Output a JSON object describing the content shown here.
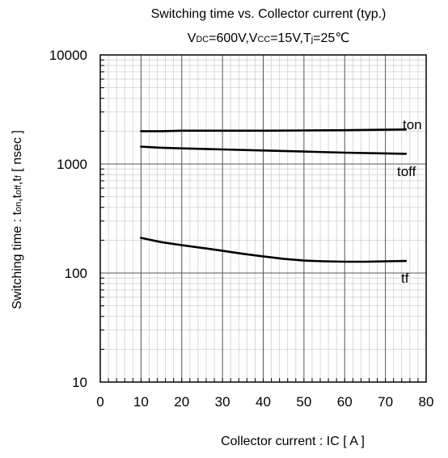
{
  "chart_data": {
    "type": "line",
    "title": "Switching time vs. Collector current (typ.)",
    "subtitle": {
      "parts": [
        {
          "text": "V",
          "sub": false
        },
        {
          "text": "DC",
          "sub": true
        },
        {
          "text": "=600V,V",
          "sub": false
        },
        {
          "text": "CC",
          "sub": true
        },
        {
          "text": "=15V,T",
          "sub": false
        },
        {
          "text": "j",
          "sub": true
        },
        {
          "text": "=25℃",
          "sub": false
        }
      ]
    },
    "xlabel": "Collector current : IC [ A ]",
    "ylabel": {
      "parts": [
        {
          "text": "Switching time : t",
          "sub": false
        },
        {
          "text": "on",
          "sub": true
        },
        {
          "text": ",t",
          "sub": false
        },
        {
          "text": "off",
          "sub": true
        },
        {
          "text": ",t",
          "sub": false
        },
        {
          "text": "f",
          "sub": true
        },
        {
          "text": " [ nsec ]",
          "sub": false
        }
      ]
    },
    "xlim": [
      0,
      80
    ],
    "ylim": [
      10,
      10000
    ],
    "yscale": "log",
    "grid": true,
    "xticks": [
      0,
      10,
      20,
      30,
      40,
      50,
      60,
      70,
      80
    ],
    "xtick_labels": [
      "0",
      "10",
      "20",
      "30",
      "40",
      "50",
      "60",
      "70",
      "80"
    ],
    "yticks": [
      10,
      100,
      1000,
      10000
    ],
    "ytick_labels": [
      "10",
      "100",
      "1000",
      "10000"
    ],
    "series": [
      {
        "name": "ton",
        "x": [
          10,
          15,
          20,
          30,
          40,
          50,
          60,
          70,
          75
        ],
        "y": [
          2000,
          2000,
          2020,
          2020,
          2020,
          2030,
          2040,
          2060,
          2070
        ]
      },
      {
        "name": "toff",
        "x": [
          10,
          15,
          20,
          30,
          40,
          50,
          60,
          70,
          75
        ],
        "y": [
          1440,
          1410,
          1390,
          1360,
          1330,
          1300,
          1270,
          1250,
          1240
        ]
      },
      {
        "name": "tf",
        "x": [
          10,
          15,
          20,
          25,
          30,
          35,
          40,
          45,
          50,
          55,
          60,
          65,
          70,
          75
        ],
        "y": [
          210,
          192,
          180,
          170,
          160,
          150,
          142,
          135,
          130,
          128,
          127,
          127,
          128,
          129
        ]
      }
    ]
  }
}
